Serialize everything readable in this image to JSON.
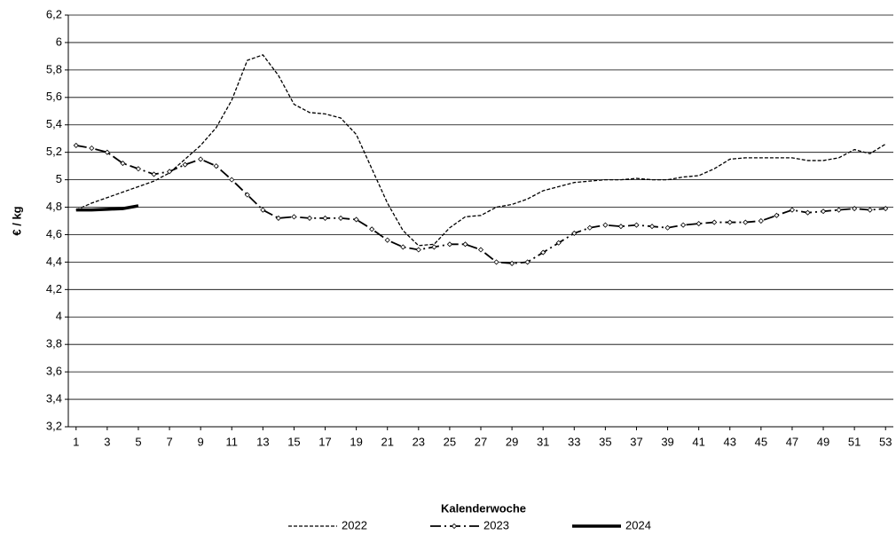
{
  "chart_data": {
    "type": "line",
    "x_label": "Kalenderwoche",
    "y_label": "€ / kg",
    "x": [
      1,
      2,
      3,
      4,
      5,
      6,
      7,
      8,
      9,
      10,
      11,
      12,
      13,
      14,
      15,
      16,
      17,
      18,
      19,
      20,
      21,
      22,
      23,
      24,
      25,
      26,
      27,
      28,
      29,
      30,
      31,
      32,
      33,
      34,
      35,
      36,
      37,
      38,
      39,
      40,
      41,
      42,
      43,
      44,
      45,
      46,
      47,
      48,
      49,
      50,
      51,
      52,
      53
    ],
    "xlim": [
      0.5,
      53.5
    ],
    "xticks": [
      1,
      3,
      5,
      7,
      9,
      11,
      13,
      15,
      17,
      19,
      21,
      23,
      25,
      27,
      29,
      31,
      33,
      35,
      37,
      39,
      41,
      43,
      45,
      47,
      49,
      51,
      53
    ],
    "ylim": [
      3.2,
      6.2
    ],
    "yticks": [
      {
        "value": 3.2,
        "label": "3,2"
      },
      {
        "value": 3.4,
        "label": "3,4"
      },
      {
        "value": 3.6,
        "label": "3,6"
      },
      {
        "value": 3.8,
        "label": "3,8"
      },
      4,
      {
        "value": 4.2,
        "label": "4,2"
      },
      {
        "value": 4.4,
        "label": "4,4"
      },
      {
        "value": 4.6,
        "label": "4,6"
      },
      {
        "value": 4.8,
        "label": "4,8"
      },
      5,
      {
        "value": 5.2,
        "label": "5,2"
      },
      {
        "value": 5.4,
        "label": "5,4"
      },
      {
        "value": 5.6,
        "label": "5,6"
      },
      {
        "value": 5.8,
        "label": "5,8"
      },
      6,
      {
        "value": 6.2,
        "label": "6,2"
      }
    ],
    "grid": true,
    "legend": "bottom",
    "series": [
      {
        "name": "2022",
        "color": "#000000",
        "style": "dashed",
        "values": [
          4.78,
          4.83,
          4.87,
          4.91,
          4.95,
          4.99,
          5.05,
          5.15,
          5.25,
          5.38,
          5.58,
          5.87,
          5.91,
          5.76,
          5.55,
          5.49,
          5.48,
          5.45,
          5.33,
          5.08,
          4.83,
          4.63,
          4.52,
          4.53,
          4.65,
          4.73,
          4.74,
          4.8,
          4.82,
          4.86,
          4.92,
          4.95,
          4.98,
          4.99,
          5.0,
          5.0,
          5.01,
          5.0,
          5.0,
          5.02,
          5.03,
          5.08,
          5.15,
          5.16,
          5.16,
          5.16,
          5.16,
          5.14,
          5.14,
          5.16,
          5.22,
          5.19,
          5.26
        ]
      },
      {
        "name": "2023",
        "color": "#000000",
        "style": "dash-dot",
        "marker": "diamond",
        "values": [
          5.25,
          5.23,
          5.2,
          5.12,
          5.08,
          5.04,
          5.06,
          5.11,
          5.15,
          5.1,
          5.0,
          4.89,
          4.78,
          4.72,
          4.73,
          4.72,
          4.72,
          4.72,
          4.71,
          4.64,
          4.56,
          4.51,
          4.49,
          4.51,
          4.53,
          4.53,
          4.49,
          4.4,
          4.39,
          4.4,
          4.47,
          4.54,
          4.61,
          4.65,
          4.67,
          4.66,
          4.67,
          4.66,
          4.65,
          4.67,
          4.68,
          4.69,
          4.69,
          4.69,
          4.7,
          4.74,
          4.78,
          4.76,
          4.77,
          4.78,
          4.79,
          4.78,
          4.79
        ]
      },
      {
        "name": "2024",
        "color": "#000000",
        "style": "solid",
        "values": [
          4.78,
          4.78,
          4.785,
          4.79,
          4.81,
          null,
          null,
          null,
          null,
          null,
          null,
          null,
          null,
          null,
          null,
          null,
          null,
          null,
          null,
          null,
          null,
          null,
          null,
          null,
          null,
          null,
          null,
          null,
          null,
          null,
          null,
          null,
          null,
          null,
          null,
          null,
          null,
          null,
          null,
          null,
          null,
          null,
          null,
          null,
          null,
          null,
          null,
          null,
          null,
          null,
          null,
          null,
          null
        ]
      }
    ]
  }
}
